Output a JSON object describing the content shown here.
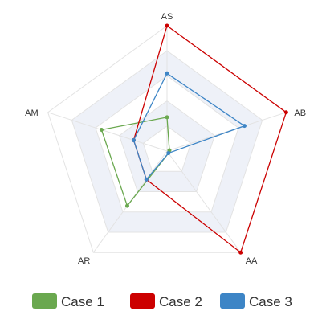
{
  "chart_data": {
    "type": "radar",
    "title": "",
    "indicators": [
      "AS",
      "AB",
      "AA",
      "AR",
      "AM"
    ],
    "max": 100,
    "levels": 5,
    "grid": true,
    "legend_position": "bottom",
    "series": [
      {
        "name": "Case 1",
        "color": "#6aa84f",
        "values": [
          27,
          2,
          2,
          54,
          55
        ]
      },
      {
        "name": "Case 2",
        "color": "#cc0000",
        "values": [
          100,
          100,
          100,
          28,
          28
        ]
      },
      {
        "name": "Case 3",
        "color": "#3d85c6",
        "values": [
          62,
          65,
          2,
          28,
          28
        ]
      }
    ]
  }
}
